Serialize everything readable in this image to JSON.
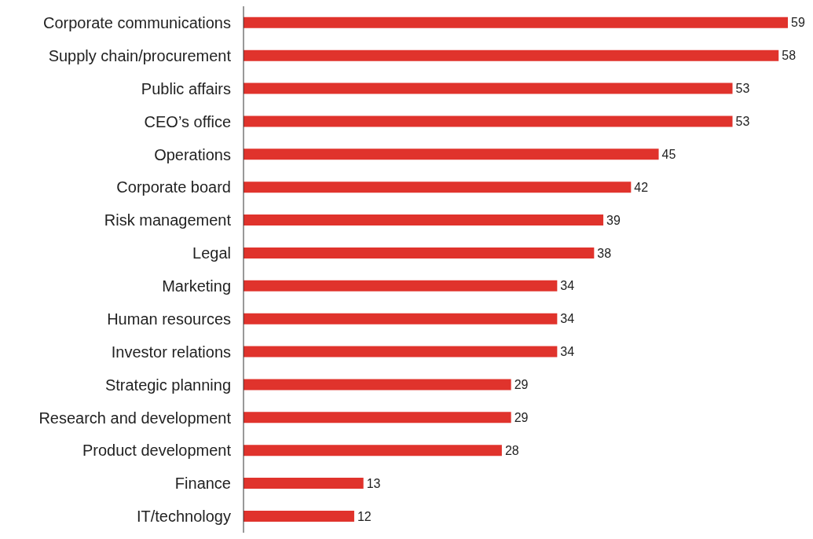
{
  "chart_data": {
    "type": "bar",
    "orientation": "horizontal",
    "categories": [
      "Corporate communications",
      "Supply chain/procurement",
      "Public affairs",
      "CEO’s office",
      "Operations",
      "Corporate board",
      "Risk management",
      "Legal",
      "Marketing",
      "Human resources",
      "Investor relations",
      "Strategic planning",
      "Research and development",
      "Product development",
      "Finance",
      "IT/technology"
    ],
    "values": [
      59,
      58,
      53,
      53,
      45,
      42,
      39,
      38,
      34,
      34,
      34,
      29,
      29,
      28,
      13,
      12
    ],
    "color": "#e0332c",
    "data_labels": true,
    "grid": false,
    "legend": false
  }
}
